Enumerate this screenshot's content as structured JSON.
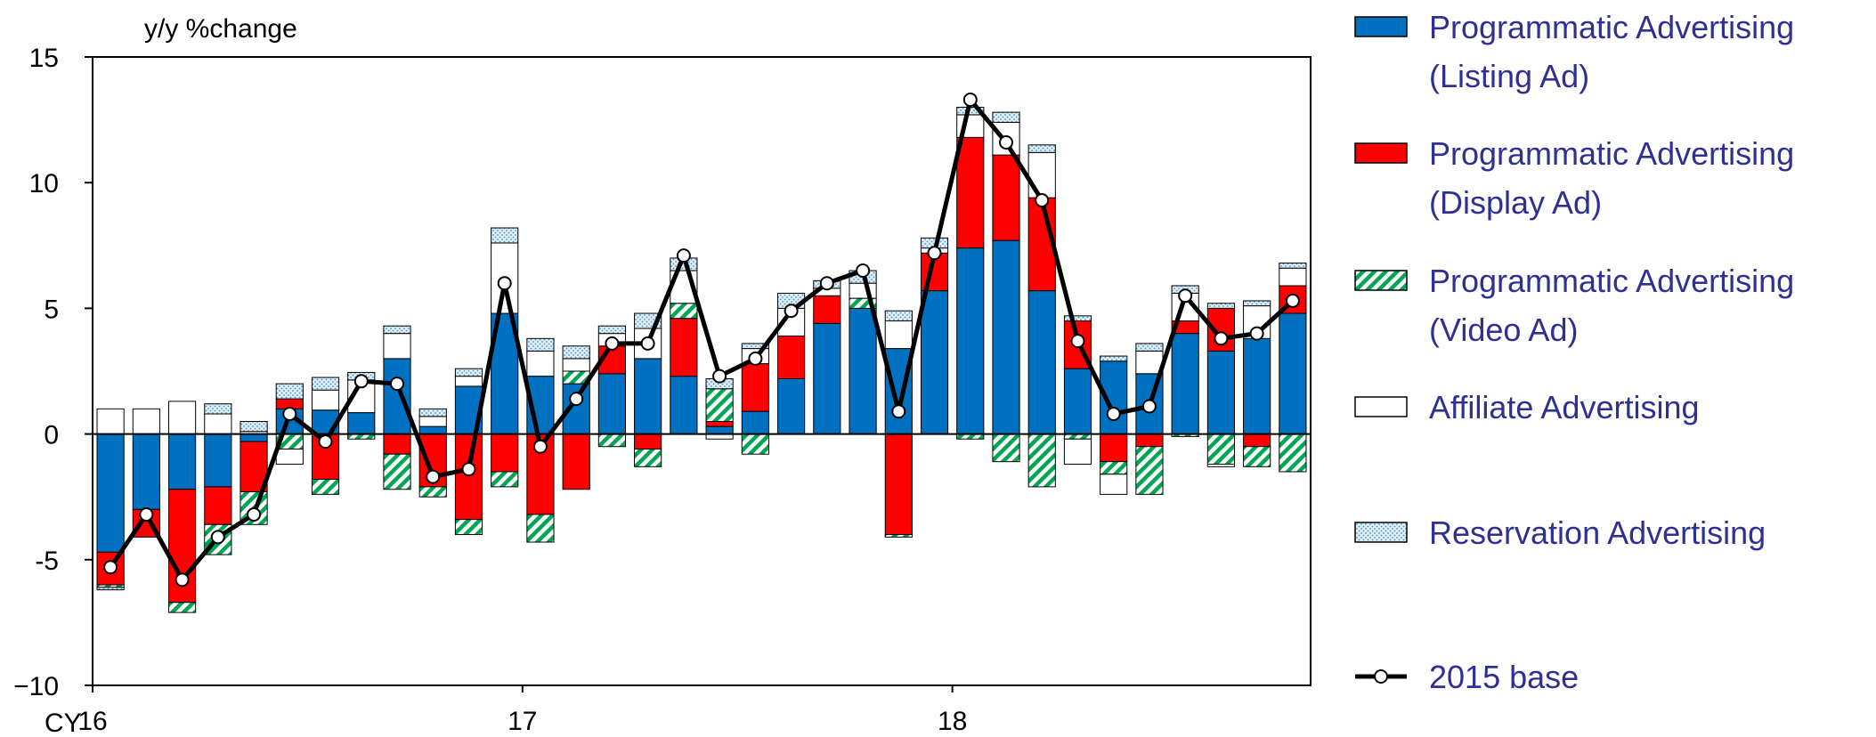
{
  "chart_data": {
    "type": "bar",
    "subtype": "stacked bar with line",
    "ylabel": "y/y %change",
    "ylim": [
      -10,
      15
    ],
    "yticks": [
      15,
      10,
      5,
      0,
      -5,
      -10
    ],
    "ytick_labels": [
      "15",
      "10",
      "5",
      "0",
      "-5",
      "−10"
    ],
    "xaxis": {
      "prefix": "CY",
      "labels": [
        {
          "text": "16",
          "index": 0
        },
        {
          "text": "17",
          "index": 12
        },
        {
          "text": "18",
          "index": 24
        }
      ]
    },
    "categories_count": 34,
    "series": [
      {
        "name": "Programmatic Advertising (Listing Ad)",
        "legend_lines": [
          "Programmatic Advertising",
          "(Listing Ad)"
        ],
        "color": "#0070c0",
        "pattern": "solid",
        "values": [
          -4.7,
          -3.0,
          -2.2,
          -2.1,
          -0.3,
          1.0,
          0.95,
          0.85,
          3.0,
          0.3,
          1.9,
          4.8,
          2.3,
          2.0,
          2.4,
          3.0,
          2.3,
          0.3,
          0.9,
          2.2,
          4.4,
          5.0,
          3.4,
          5.7,
          7.4,
          7.7,
          5.7,
          2.6,
          2.9,
          2.4,
          4.0,
          3.3,
          3.8,
          4.8
        ]
      },
      {
        "name": "Programmatic Advertising (Display Ad)",
        "legend_lines": [
          "Programmatic Advertising",
          "(Display Ad)"
        ],
        "color": "#ff0000",
        "pattern": "solid",
        "values": [
          -1.3,
          -1.1,
          -4.5,
          -1.5,
          -2.0,
          0.4,
          -1.8,
          0.0,
          -0.8,
          -2.1,
          -3.4,
          -1.5,
          -3.2,
          -2.2,
          1.1,
          -0.6,
          2.3,
          0.2,
          1.9,
          1.7,
          1.1,
          0.0,
          -4.0,
          1.5,
          4.4,
          3.4,
          3.7,
          1.9,
          -1.1,
          -0.5,
          0.5,
          1.7,
          -0.5,
          1.1
        ]
      },
      {
        "name": "Programmatic Advertising (Video Ad)",
        "legend_lines": [
          "Programmatic Advertising",
          "(Video Ad)"
        ],
        "color": "#00a651",
        "pattern": "diagonal-stripes",
        "values": [
          -0.1,
          0.0,
          -0.4,
          -1.2,
          -1.3,
          -0.6,
          -0.6,
          -0.2,
          -1.4,
          -0.4,
          -0.6,
          -0.6,
          -1.1,
          0.5,
          -0.5,
          -0.7,
          0.6,
          1.3,
          -0.8,
          0.0,
          0.0,
          0.4,
          -0.1,
          0.0,
          -0.2,
          -1.1,
          -2.1,
          -0.2,
          -0.5,
          -1.9,
          -0.1,
          -1.2,
          -0.8,
          -1.5
        ]
      },
      {
        "name": "Affiliate Advertising",
        "legend_lines": [
          "Affiliate Advertising"
        ],
        "color": "#ffffff",
        "pattern": "solid-outline",
        "values": [
          1.0,
          1.0,
          1.3,
          0.8,
          0.1,
          -0.6,
          0.8,
          1.3,
          1.0,
          0.4,
          0.4,
          2.8,
          1.0,
          0.5,
          0.5,
          1.2,
          1.3,
          -0.2,
          0.6,
          1.1,
          0.3,
          0.6,
          1.1,
          0.2,
          0.9,
          1.3,
          1.8,
          -1.0,
          -0.8,
          0.9,
          1.1,
          -0.1,
          1.3,
          0.7
        ]
      },
      {
        "name": "Reservation Advertising",
        "legend_lines": [
          "Reservation Advertising"
        ],
        "color": "#c5e3f6",
        "pattern": "dots",
        "values": [
          -0.1,
          0.0,
          0.0,
          0.4,
          0.4,
          0.6,
          0.5,
          0.3,
          0.3,
          0.3,
          0.3,
          0.6,
          0.5,
          0.5,
          0.3,
          0.6,
          0.5,
          0.4,
          0.2,
          0.6,
          0.3,
          0.5,
          0.4,
          0.4,
          0.3,
          0.4,
          0.3,
          0.2,
          0.2,
          0.3,
          0.3,
          0.2,
          0.2,
          0.2
        ]
      }
    ],
    "line_series": {
      "name": "2015 base",
      "color": "#000000",
      "values": [
        -5.3,
        -3.2,
        -5.8,
        -4.1,
        -3.2,
        0.8,
        -0.3,
        2.1,
        2.0,
        -1.7,
        -1.4,
        6.0,
        -0.5,
        1.4,
        3.6,
        3.6,
        7.1,
        2.3,
        3.0,
        4.9,
        6.0,
        6.5,
        0.9,
        7.2,
        13.3,
        11.6,
        9.3,
        3.7,
        0.8,
        1.1,
        5.5,
        3.8,
        4.0,
        5.3
      ]
    },
    "legend_position": "right",
    "grid": false
  }
}
